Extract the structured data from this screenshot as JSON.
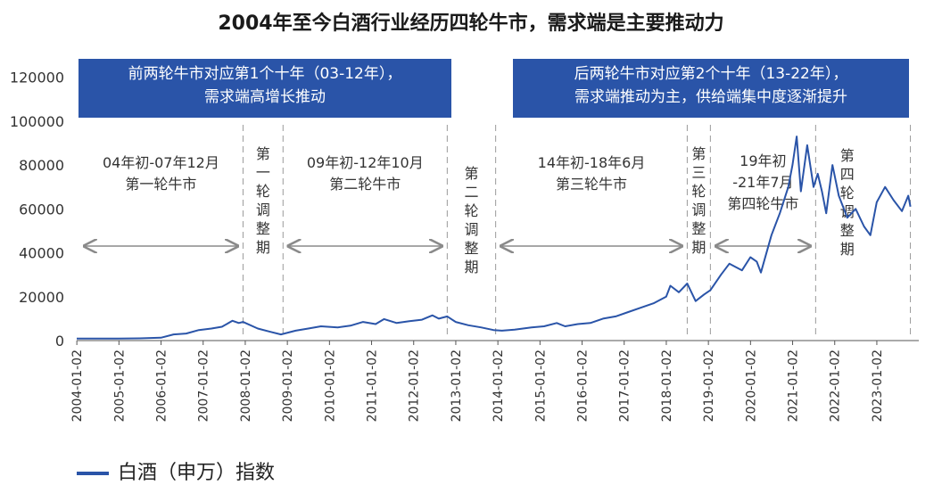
{
  "chart_data": {
    "type": "line",
    "title": "2004年至今白酒行业经历四轮牛市，需求端是主要推动力",
    "legend": [
      "白酒（申万）指数"
    ],
    "legend_position": "bottom-left",
    "ylim": [
      0,
      130000
    ],
    "yticks": [
      0,
      20000,
      40000,
      60000,
      80000,
      100000,
      120000
    ],
    "xticks": [
      "2004-01-02",
      "2005-01-02",
      "2006-01-02",
      "2007-01-02",
      "2008-01-02",
      "2009-01-02",
      "2010-01-02",
      "2011-01-02",
      "2012-01-02",
      "2013-01-02",
      "2014-01-02",
      "2015-01-02",
      "2016-01-02",
      "2017-01-02",
      "2018-01-02",
      "2019-01-02",
      "2020-01-02",
      "2021-01-02",
      "2022-01-02",
      "2023-01-02"
    ],
    "line_color": "#2a54a8",
    "banners": [
      {
        "text": [
          "前两轮牛市对应第1个十年（03-12年），",
          "需求端高增长推动"
        ]
      },
      {
        "text": [
          "后两轮牛市对应第2个十年（13-22年），",
          "需求端推动为主，供给端集中度逐渐提升"
        ]
      }
    ],
    "phases": [
      {
        "label": [
          "04年初-07年12月",
          "第一轮牛市"
        ],
        "from": 2004.05,
        "to": 2007.95,
        "arrow": true
      },
      {
        "label": [
          "第",
          "一",
          "轮",
          "调",
          "整",
          "期"
        ],
        "vertical": true,
        "from": 2007.95,
        "to": 2008.9,
        "arrow": false
      },
      {
        "label": [
          "09年初-12年10月",
          "第二轮牛市"
        ],
        "from": 2008.9,
        "to": 2012.8,
        "arrow": true
      },
      {
        "label": [
          "第",
          "二",
          "轮",
          "调",
          "整",
          "期"
        ],
        "vertical": true,
        "from": 2012.8,
        "to": 2013.95,
        "arrow": false
      },
      {
        "label": [
          "14年初-18年6月",
          "第三轮牛市"
        ],
        "from": 2013.95,
        "to": 2018.5,
        "arrow": true
      },
      {
        "label": [
          "第",
          "三",
          "轮",
          "调",
          "整",
          "期"
        ],
        "vertical": true,
        "from": 2018.5,
        "to": 2019.05,
        "arrow": false
      },
      {
        "label": [
          "19年初",
          "-21年7月",
          "第四轮牛市"
        ],
        "from": 2019.05,
        "to": 2021.55,
        "arrow": true
      },
      {
        "label": [
          "第",
          "四",
          "轮",
          "调",
          "整",
          "期"
        ],
        "vertical": true,
        "from": 2021.55,
        "to": 2023.8,
        "arrow": false
      }
    ],
    "series": [
      {
        "name": "白酒（申万）指数",
        "x": [
          2004.0,
          2004.5,
          2005.0,
          2005.5,
          2006.0,
          2006.3,
          2006.6,
          2006.9,
          2007.2,
          2007.45,
          2007.7,
          2007.85,
          2007.95,
          2008.3,
          2008.6,
          2008.85,
          2009.2,
          2009.5,
          2009.8,
          2010.2,
          2010.5,
          2010.8,
          2011.1,
          2011.3,
          2011.6,
          2011.9,
          2012.2,
          2012.45,
          2012.6,
          2012.8,
          2013.0,
          2013.3,
          2013.6,
          2013.9,
          2014.1,
          2014.4,
          2014.8,
          2015.1,
          2015.4,
          2015.6,
          2015.9,
          2016.2,
          2016.5,
          2016.8,
          2017.1,
          2017.4,
          2017.7,
          2018.0,
          2018.1,
          2018.3,
          2018.5,
          2018.7,
          2018.9,
          2019.05,
          2019.3,
          2019.5,
          2019.8,
          2020.0,
          2020.15,
          2020.25,
          2020.5,
          2020.7,
          2020.9,
          2021.0,
          2021.1,
          2021.2,
          2021.35,
          2021.5,
          2021.6,
          2021.7,
          2021.8,
          2021.95,
          2022.1,
          2022.3,
          2022.5,
          2022.7,
          2022.85,
          2023.0,
          2023.2,
          2023.4,
          2023.6,
          2023.75,
          2023.8
        ],
        "y": [
          900,
          900,
          950,
          1000,
          1300,
          2800,
          3200,
          4800,
          5500,
          6300,
          9000,
          8000,
          8500,
          5500,
          4000,
          2800,
          4500,
          5500,
          6500,
          6000,
          6800,
          8500,
          7500,
          9800,
          8000,
          8800,
          9500,
          11500,
          10000,
          11000,
          8500,
          7000,
          6000,
          4800,
          4500,
          5000,
          6000,
          6500,
          8000,
          6500,
          7500,
          8000,
          10000,
          11000,
          13000,
          15000,
          17000,
          20000,
          25000,
          22000,
          26000,
          18000,
          21000,
          23000,
          30000,
          35000,
          32000,
          38000,
          36000,
          31000,
          48000,
          58000,
          70000,
          80000,
          93000,
          68000,
          89000,
          70000,
          76000,
          68000,
          58000,
          80000,
          66000,
          56000,
          60000,
          52000,
          48000,
          63000,
          70000,
          64000,
          59000,
          66000,
          61000
        ]
      }
    ]
  }
}
